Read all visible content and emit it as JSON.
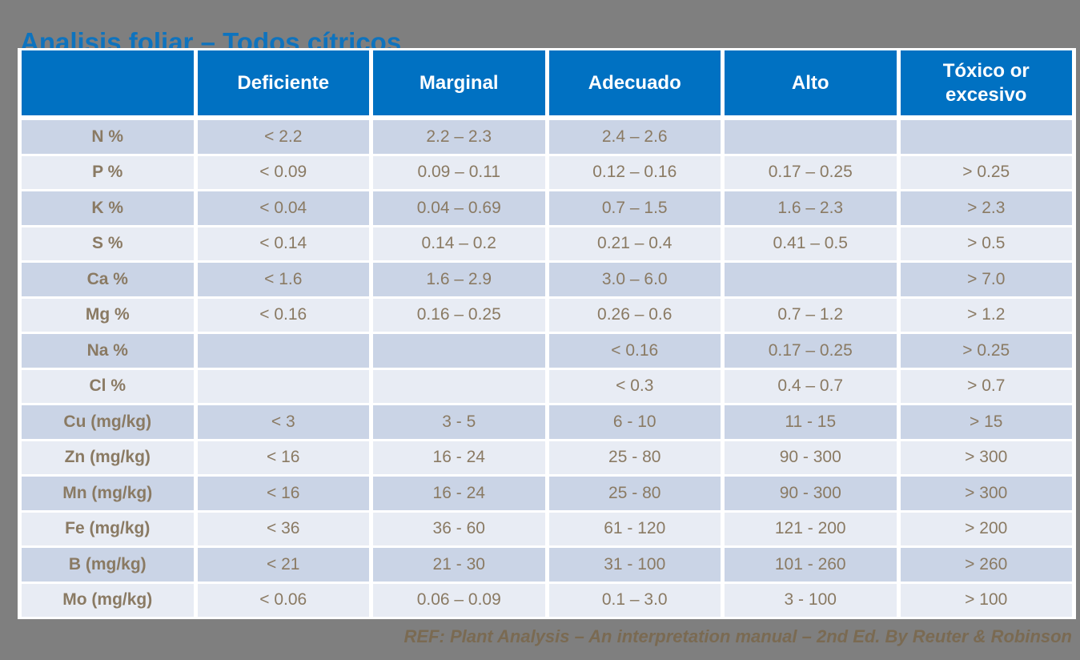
{
  "page": {
    "title": "Analisis foliar – Todos cítricos",
    "footer_ref": "REF: Plant Analysis – An interpretation manual – 2nd Ed. By Reuter & Robinson"
  },
  "colors": {
    "slide_background": "#7F7F7F",
    "title_text": "#0E73BE",
    "header_background": "#0071C2",
    "header_text": "#FFFFFF",
    "row_dark": "#CAD4E6",
    "row_light": "#E8ECF4",
    "cell_text": "#8A7A63",
    "footer_text": "#7A6A52",
    "table_border": "#FFFFFF"
  },
  "table": {
    "headers": [
      "",
      "Deficiente",
      "Marginal",
      "Adecuado",
      "Alto",
      "Tóxico or excesivo"
    ],
    "rows": [
      {
        "label": "N %",
        "values": [
          "< 2.2",
          "2.2 – 2.3",
          "2.4 – 2.6",
          "",
          ""
        ]
      },
      {
        "label": "P %",
        "values": [
          "< 0.09",
          "0.09 – 0.11",
          "0.12 – 0.16",
          "0.17 – 0.25",
          "> 0.25"
        ]
      },
      {
        "label": "K %",
        "values": [
          "< 0.04",
          "0.04 – 0.69",
          "0.7 – 1.5",
          "1.6 – 2.3",
          "> 2.3"
        ]
      },
      {
        "label": "S %",
        "values": [
          "< 0.14",
          "0.14 – 0.2",
          "0.21 – 0.4",
          "0.41 – 0.5",
          "> 0.5"
        ]
      },
      {
        "label": "Ca %",
        "values": [
          "< 1.6",
          "1.6 – 2.9",
          "3.0 – 6.0",
          "",
          "> 7.0"
        ]
      },
      {
        "label": "Mg %",
        "values": [
          "< 0.16",
          "0.16 – 0.25",
          "0.26 – 0.6",
          "0.7 – 1.2",
          "> 1.2"
        ]
      },
      {
        "label": "Na %",
        "values": [
          "",
          "",
          "< 0.16",
          "0.17 – 0.25",
          "> 0.25"
        ]
      },
      {
        "label": "Cl %",
        "values": [
          "",
          "",
          "< 0.3",
          "0.4 – 0.7",
          "> 0.7"
        ]
      },
      {
        "label": "Cu (mg/kg)",
        "values": [
          "< 3",
          "3 - 5",
          "6 - 10",
          "11 - 15",
          "> 15"
        ]
      },
      {
        "label": "Zn (mg/kg)",
        "values": [
          "< 16",
          "16 - 24",
          "25 - 80",
          "90 - 300",
          "> 300"
        ]
      },
      {
        "label": "Mn (mg/kg)",
        "values": [
          "< 16",
          "16 - 24",
          "25 - 80",
          "90 - 300",
          "> 300"
        ]
      },
      {
        "label": "Fe (mg/kg)",
        "values": [
          "< 36",
          "36 - 60",
          "61 - 120",
          "121 - 200",
          "> 200"
        ]
      },
      {
        "label": "B (mg/kg)",
        "values": [
          "< 21",
          "21 - 30",
          "31 - 100",
          "101 - 260",
          "> 260"
        ]
      },
      {
        "label": "Mo (mg/kg)",
        "values": [
          "< 0.06",
          "0.06 – 0.09",
          "0.1 – 3.0",
          "3 - 100",
          "> 100"
        ]
      }
    ]
  }
}
